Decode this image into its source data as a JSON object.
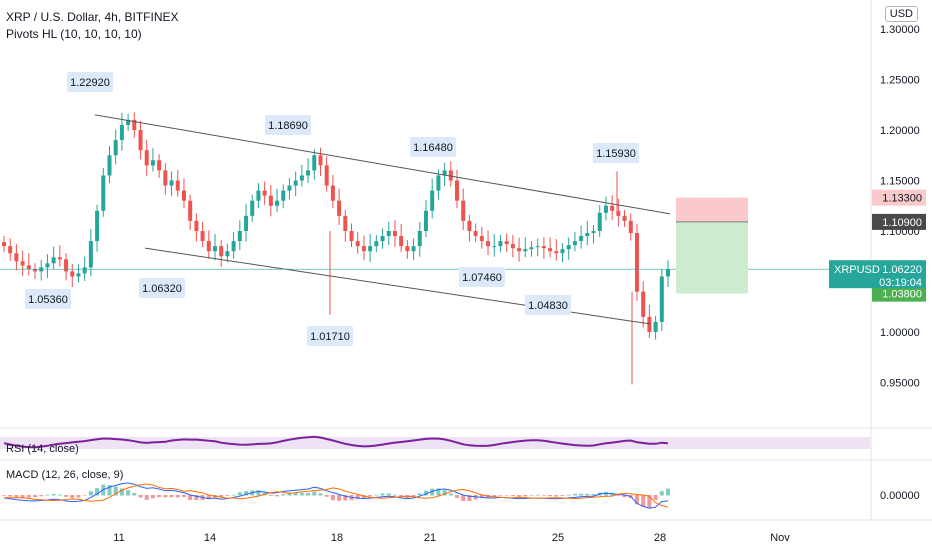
{
  "header": {
    "title": "XRP / U.S. Dollar, 4h, BITFINEX",
    "indicator": "Pivots HL (10, 10, 10, 10)"
  },
  "currency": "USD",
  "price_scale_labels": [
    "1.30000",
    "1.25000",
    "1.20000",
    "1.15000",
    "1.10000",
    "1.05000",
    "1.00000",
    "0.95000"
  ],
  "rsi_label": "RSI (14, close)",
  "macd_label": "MACD (12, 26, close, 9)",
  "macd_scale_label": "0.00000",
  "price_tags": {
    "symbol": "XRPUSD",
    "current": "1.06220",
    "countdown": "03:19:04",
    "stop": "1.13300",
    "entry": "1.10900",
    "target": "1.03800"
  },
  "colors": {
    "up": "#26a69a",
    "down": "#ef5350",
    "rsi": "#7e1f9c",
    "macd": "#2962ff",
    "signal": "#ff6d00",
    "tp": "#4caf50",
    "entry_tag": "#4a4a4a"
  },
  "chart_data": {
    "type": "candlestick",
    "x_ticks": [
      "11",
      "14",
      "18",
      "21",
      "25",
      "28",
      "Nov"
    ],
    "ylim": [
      0.92,
      1.32
    ],
    "pivots": [
      {
        "label": "1.22920",
        "value": 1.2292,
        "kind": "high"
      },
      {
        "label": "1.05360",
        "value": 1.0536,
        "kind": "low"
      },
      {
        "label": "1.06320",
        "value": 1.0632,
        "kind": "low"
      },
      {
        "label": "1.18690",
        "value": 1.1869,
        "kind": "high"
      },
      {
        "label": "1.01710",
        "value": 1.0171,
        "kind": "low"
      },
      {
        "label": "1.16480",
        "value": 1.1648,
        "kind": "high"
      },
      {
        "label": "1.07460",
        "value": 1.0746,
        "kind": "low"
      },
      {
        "label": "1.04830",
        "value": 1.0483,
        "kind": "low"
      },
      {
        "label": "1.15930",
        "value": 1.1593,
        "kind": "high"
      }
    ],
    "candles_close": [
      1.085,
      1.078,
      1.07,
      1.066,
      1.062,
      1.06,
      1.064,
      1.068,
      1.074,
      1.072,
      1.06,
      1.055,
      1.058,
      1.064,
      1.09,
      1.12,
      1.155,
      1.175,
      1.19,
      1.205,
      1.21,
      1.2,
      1.18,
      1.165,
      1.17,
      1.16,
      1.145,
      1.15,
      1.14,
      1.13,
      1.11,
      1.1,
      1.09,
      1.08,
      1.085,
      1.075,
      1.08,
      1.09,
      1.1,
      1.115,
      1.13,
      1.14,
      1.135,
      1.125,
      1.13,
      1.14,
      1.145,
      1.15,
      1.155,
      1.16,
      1.175,
      1.165,
      1.145,
      1.13,
      1.115,
      1.1,
      1.09,
      1.085,
      1.08,
      1.085,
      1.09,
      1.095,
      1.1,
      1.095,
      1.085,
      1.08,
      1.085,
      1.1,
      1.12,
      1.14,
      1.155,
      1.16,
      1.15,
      1.13,
      1.11,
      1.1,
      1.095,
      1.09,
      1.085,
      1.085,
      1.09,
      1.087,
      1.083,
      1.08,
      1.082,
      1.084,
      1.085,
      1.083,
      1.08,
      1.078,
      1.082,
      1.086,
      1.09,
      1.095,
      1.098,
      1.1,
      1.118,
      1.125,
      1.12,
      1.115,
      1.11,
      1.098,
      1.04,
      1.015,
      1.0,
      1.01,
      1.055,
      1.062
    ],
    "rsi": {
      "ylim": [
        0,
        100
      ],
      "band": [
        30,
        70
      ]
    },
    "trade": {
      "stop": 1.133,
      "entry": 1.109,
      "target": 1.038
    }
  }
}
